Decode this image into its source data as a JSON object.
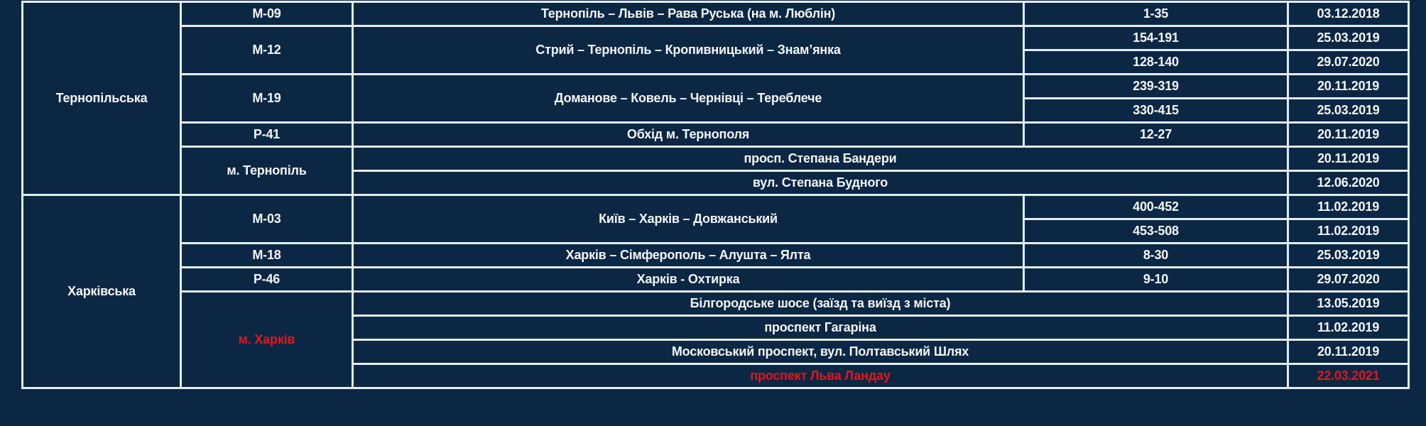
{
  "colors": {
    "background": "#0b2744",
    "border": "#e4edf3",
    "text": "#f4f6f8",
    "highlight": "#e3161d"
  },
  "regions": [
    {
      "name": "Тернопільська",
      "roads": [
        {
          "code": "М-09",
          "name": "Тернопіль – Львів – Рава Руська (на м. Люблін)",
          "segments": [
            {
              "km": "1-35",
              "date": "03.12.2018"
            }
          ]
        },
        {
          "code": "М-12",
          "name": "Стрий – Тернопіль – Кропивницький – Знам’янка",
          "segments": [
            {
              "km": "154-191",
              "date": "25.03.2019"
            },
            {
              "km": "128-140",
              "date": "29.07.2020"
            }
          ]
        },
        {
          "code": "М-19",
          "name": "Доманове – Ковель – Чернівці – Тереблече",
          "segments": [
            {
              "km": "239-319",
              "date": "20.11.2019"
            },
            {
              "km": "330-415",
              "date": "25.03.2019"
            }
          ]
        },
        {
          "code": "Р-41",
          "name": "Обхід м. Тернополя",
          "segments": [
            {
              "km": "12-27",
              "date": "20.11.2019"
            }
          ]
        }
      ],
      "city": {
        "name": "м. Тернопіль",
        "highlight": false,
        "streets": [
          {
            "name": "просп. Степана Бандери",
            "date": "20.11.2019",
            "highlight": false
          },
          {
            "name": "вул. Степана Будного",
            "date": "12.06.2020",
            "highlight": false
          }
        ]
      }
    },
    {
      "name": "Харківська",
      "roads": [
        {
          "code": "М-03",
          "name": "Київ – Харків – Довжанський",
          "segments": [
            {
              "km": "400-452",
              "date": "11.02.2019"
            },
            {
              "km": "453-508",
              "date": "11.02.2019"
            }
          ]
        },
        {
          "code": "М-18",
          "name": "Харків – Сімферополь – Алушта – Ялта",
          "segments": [
            {
              "km": "8-30",
              "date": "25.03.2019"
            }
          ]
        },
        {
          "code": "Р-46",
          "name": "Харків - Охтирка",
          "segments": [
            {
              "km": "9-10",
              "date": "29.07.2020"
            }
          ]
        }
      ],
      "city": {
        "name": "м. Харків",
        "highlight": true,
        "streets": [
          {
            "name": "Білгородське шосе (заїзд та виїзд з міста)",
            "date": "13.05.2019",
            "highlight": false
          },
          {
            "name": "проспект Гагаріна",
            "date": "11.02.2019",
            "highlight": false
          },
          {
            "name": "Московський проспект, вул. Полтавський Шлях",
            "date": "20.11.2019",
            "highlight": false
          },
          {
            "name": "проспект Льва Ландау",
            "date": "22.03.2021",
            "highlight": true
          }
        ]
      }
    }
  ]
}
